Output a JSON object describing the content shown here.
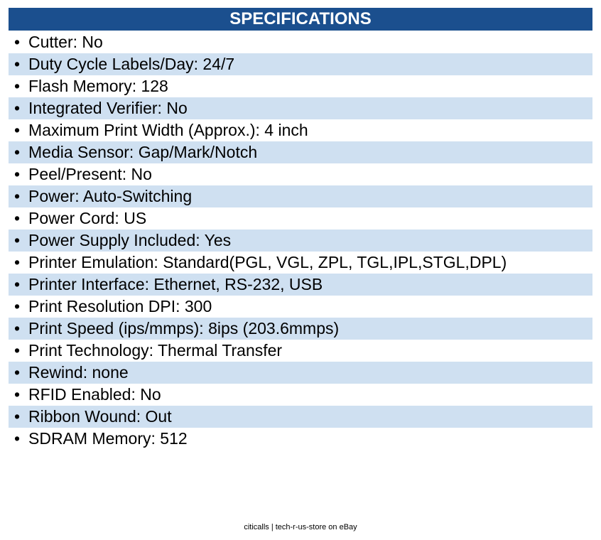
{
  "header": {
    "title": "SPECIFICATIONS"
  },
  "items": [
    "Cutter: No",
    "Duty Cycle Labels/Day: 24/7",
    "Flash Memory: 128",
    "Integrated Verifier: No",
    "Maximum Print Width (Approx.): 4 inch",
    "Media Sensor: Gap/Mark/Notch",
    "Peel/Present: No",
    "Power: Auto-Switching",
    "Power Cord: US",
    "Power Supply Included: Yes",
    "Printer Emulation: Standard(PGL, VGL, ZPL, TGL,IPL,STGL,DPL)",
    "Printer Interface: Ethernet, RS-232, USB",
    "Print Resolution DPI: 300",
    "Print Speed (ips/mmps): 8ips (203.6mmps)",
    "Print Technology: Thermal Transfer",
    "Rewind: none",
    "RFID Enabled: No",
    "Ribbon Wound: Out",
    "SDRAM Memory: 512"
  ],
  "footer": "citicalls | tech-r-us-store on eBay"
}
